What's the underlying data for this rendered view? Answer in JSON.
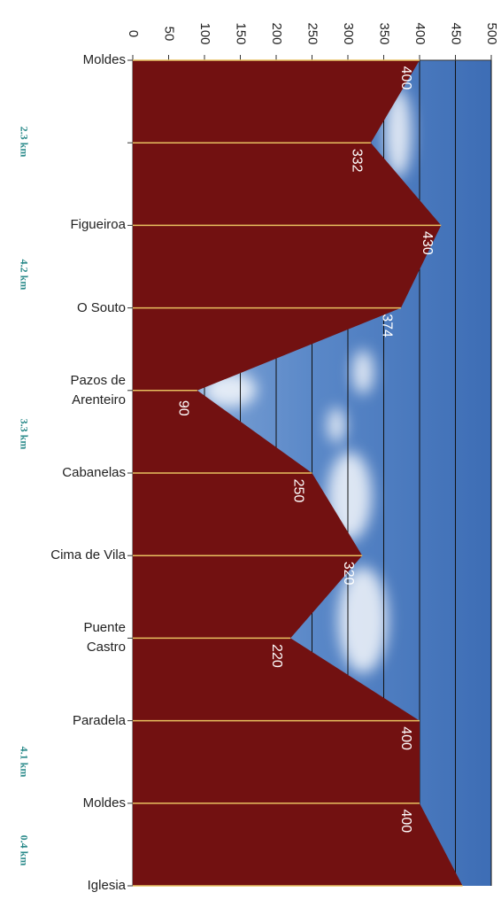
{
  "chart_data": {
    "type": "elevation-profile",
    "categories": [
      "Moldes",
      null,
      "Figueiroa",
      "O Souto",
      "Pazos de Arenteiro",
      "Cabanelas",
      "Cima de Vila",
      "Puente Castro",
      "Paradela",
      "Moldes",
      "Iglesia"
    ],
    "values": [
      400,
      332,
      430,
      374,
      90,
      250,
      320,
      220,
      400,
      400,
      460
    ],
    "color": "#721111",
    "xlim": [
      0,
      500
    ],
    "xticks": [
      0,
      50,
      100,
      150,
      200,
      250,
      300,
      350,
      400,
      450,
      500
    ],
    "grid": true,
    "annotations": [
      "2.3 km",
      "4.2 km",
      "3.3 km",
      "4.1 km",
      "0.4 km"
    ]
  }
}
